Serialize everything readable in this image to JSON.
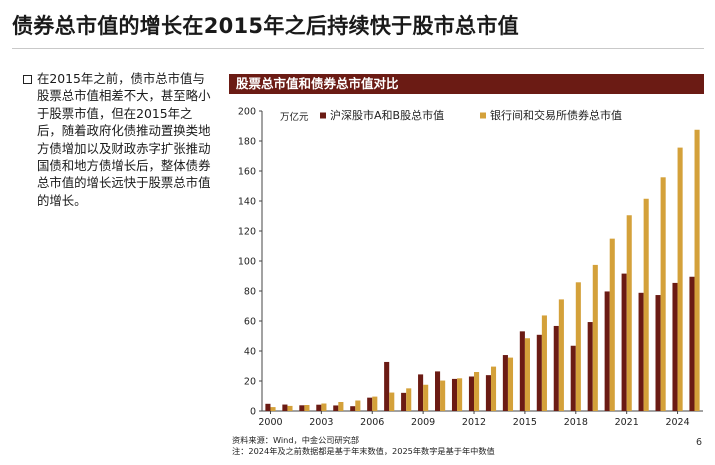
{
  "page": {
    "title": "债券总市值的增长在2015年之后持续快于股市总市值",
    "bullet_text": "在2015年之前，债市总市值与股票总市值相差不大，甚至略小于股票市值，但在2015年之后，随着政府化债推动置换类地方债增加以及财政赤字扩张推动国债和地方债增长后，整体债券总市值的增长远快于股票总市值的增长。",
    "chart_header": "股票总市值和债券总市值对比",
    "source_line1": "资料来源：Wind，中金公司研究部",
    "source_line2": "注：2024年及之前数据都是基于年末数值，2025年数字是基于年中数值",
    "page_number": "6"
  },
  "chart_data": {
    "type": "bar",
    "ylabel": "万亿元",
    "ylim": [
      0,
      200
    ],
    "yticks": [
      0,
      20,
      40,
      60,
      80,
      100,
      120,
      140,
      160,
      180,
      200
    ],
    "categories": [
      "2000",
      "2001",
      "2002",
      "2003",
      "2004",
      "2005",
      "2006",
      "2007",
      "2008",
      "2009",
      "2010",
      "2011",
      "2012",
      "2013",
      "2014",
      "2015",
      "2016",
      "2017",
      "2018",
      "2019",
      "2020",
      "2021",
      "2022",
      "2023",
      "2024",
      "2025"
    ],
    "xtick_labels": [
      "2000",
      "2003",
      "2006",
      "2009",
      "2012",
      "2015",
      "2018",
      "2021",
      "2024"
    ],
    "legend_position": "top",
    "series": [
      {
        "name": "沪深股市A和B股总市值",
        "color": "#6b1b14",
        "values": [
          4.8,
          4.3,
          3.8,
          4.2,
          3.7,
          3.2,
          8.9,
          32.7,
          12.1,
          24.4,
          26.4,
          21.4,
          23.0,
          23.9,
          37.3,
          53.1,
          50.8,
          56.7,
          43.5,
          59.3,
          79.7,
          91.6,
          78.8,
          77.3,
          85.4,
          89.5
        ]
      },
      {
        "name": "银行间和交易所债券总市值",
        "color": "#d4a13a",
        "values": [
          2.6,
          3.4,
          4.0,
          5.0,
          6.0,
          7.0,
          9.6,
          12.3,
          15.1,
          17.5,
          20.3,
          21.8,
          26.0,
          29.6,
          35.6,
          48.5,
          63.7,
          74.4,
          85.8,
          97.4,
          114.9,
          130.5,
          141.5,
          155.8,
          175.6,
          187.5
        ]
      }
    ]
  }
}
